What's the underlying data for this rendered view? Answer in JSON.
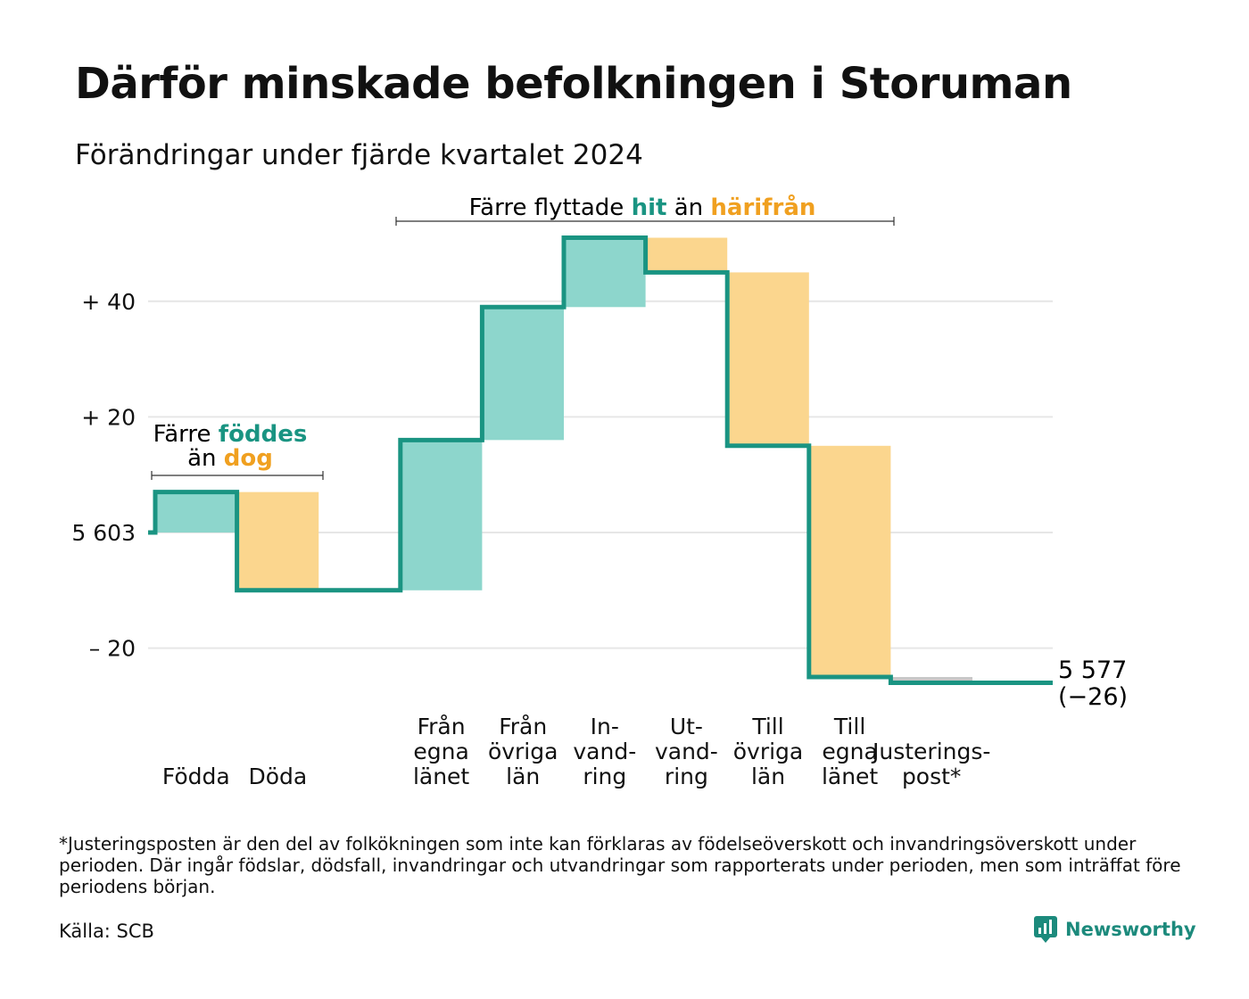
{
  "header": {
    "title": "Därför minskade befolkningen i Storuman",
    "subtitle": "Förändringar under fjärde kvartalet 2024"
  },
  "chart_data": {
    "type": "waterfall",
    "baseline": 5603,
    "ylim": [
      -26,
      51
    ],
    "y_ticks": [
      {
        "value": 40,
        "label": "+ 40"
      },
      {
        "value": 20,
        "label": "+ 20"
      },
      {
        "value": 0,
        "label": "5 603"
      },
      {
        "value": -20,
        "label": "– 20"
      }
    ],
    "steps": [
      {
        "key": "fodda",
        "label": [
          "Födda"
        ],
        "change": 7,
        "kind": "in"
      },
      {
        "key": "doda",
        "label": [
          "Döda"
        ],
        "change": -17,
        "kind": "out"
      },
      {
        "key": "gap",
        "label": [],
        "change": 0,
        "kind": "none"
      },
      {
        "key": "fran-egna-lanet",
        "label": [
          "Från",
          "egna",
          "länet"
        ],
        "change": 26,
        "kind": "in"
      },
      {
        "key": "fran-ovriga-lan",
        "label": [
          "Från",
          "övriga",
          "län"
        ],
        "change": 23,
        "kind": "in"
      },
      {
        "key": "invandring",
        "label": [
          "In-",
          "vand-",
          "ring"
        ],
        "change": 12,
        "kind": "in"
      },
      {
        "key": "utvandring",
        "label": [
          "Ut-",
          "vand-",
          "ring"
        ],
        "change": -6,
        "kind": "out"
      },
      {
        "key": "till-ovriga-lan",
        "label": [
          "Till",
          "övriga",
          "län"
        ],
        "change": -30,
        "kind": "out"
      },
      {
        "key": "till-egna-lanet",
        "label": [
          "Till",
          "egna",
          "länet"
        ],
        "change": -40,
        "kind": "out"
      },
      {
        "key": "justeringspost",
        "label": [
          "Justerings-",
          "post*"
        ],
        "change": -1,
        "kind": "adjust"
      }
    ],
    "end_value_label": "5 577",
    "end_change_label": "(−26)",
    "annotations": {
      "births": {
        "line1_prefix": "Färre ",
        "line1_highlight": "föddes",
        "line2_prefix": "än ",
        "line2_highlight": "dog"
      },
      "moves": {
        "prefix": "Färre flyttade ",
        "highlight_in": "hit",
        "middle": " än ",
        "highlight_out": "härifrån"
      }
    },
    "colors": {
      "line": "#1a9482",
      "in_fill": "#8dd6cc",
      "out_fill": "#fbd68e",
      "adjust_fill": "#c8c8c8",
      "in_text": "#1a9482",
      "out_text": "#f0a020",
      "grid": "#e6e6e6"
    }
  },
  "footnote": "*Justeringsposten är den del av folkökningen som inte kan förklaras av födelseöverskott och invandringsöverskott under perioden. Där ingår födslar, dödsfall, invandringar och utvandringar som rapporterats under perioden, men som inträffat före periodens början.",
  "source": "Källa: SCB",
  "brand": {
    "name": "Newsworthy",
    "icon": "newsworthy-logo-icon"
  }
}
